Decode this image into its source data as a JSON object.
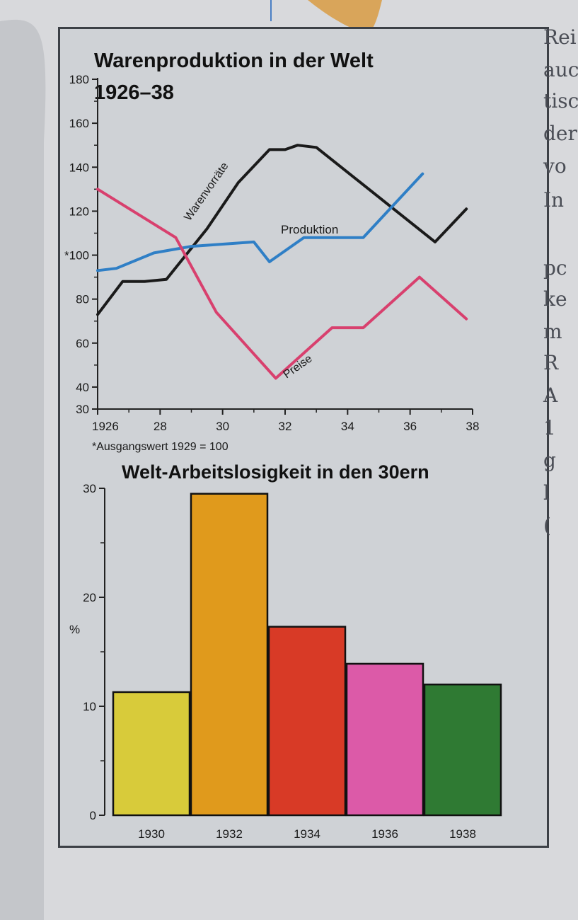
{
  "chart_data": [
    {
      "type": "line",
      "title": "Warenproduktion in der Welt",
      "subtitle": "1926–38",
      "footnote": "*Ausgangswert 1929 = 100",
      "x_tick_labels": [
        "1926",
        "28",
        "30",
        "32",
        "34",
        "36",
        "38"
      ],
      "y_tick_labels": [
        "30",
        "40",
        "60",
        "80",
        "*100",
        "120",
        "140",
        "160",
        "180"
      ],
      "ylim": [
        30,
        180
      ],
      "xlim": [
        1926,
        1938
      ],
      "series": [
        {
          "name": "Warenvorräte",
          "color": "#1a1a1a",
          "x": [
            1926,
            1926.8,
            1927.5,
            1928.2,
            1929.5,
            1930.5,
            1931.5,
            1932,
            1932.4,
            1933,
            1936.8,
            1937.8
          ],
          "values": [
            73,
            88,
            88,
            89,
            112,
            133,
            148,
            148,
            150,
            149,
            106,
            121
          ]
        },
        {
          "name": "Produktion",
          "color": "#2f7fc6",
          "x": [
            1926,
            1926.6,
            1927.8,
            1929,
            1931,
            1931.5,
            1932.6,
            1934.5,
            1936.4
          ],
          "values": [
            93,
            94,
            101,
            104,
            106,
            97,
            108,
            108,
            137
          ]
        },
        {
          "name": "Preise",
          "color": "#d8406e",
          "x": [
            1926,
            1928.5,
            1929.8,
            1931.7,
            1933.5,
            1934.5,
            1936.3,
            1937.8
          ],
          "values": [
            130,
            108,
            74,
            44,
            67,
            67,
            90,
            71
          ]
        }
      ]
    },
    {
      "type": "bar",
      "title": "Welt-Arbeitslosigkeit in den 30ern",
      "ylabel": "%",
      "y_tick_labels": [
        "0",
        "10",
        "20",
        "30"
      ],
      "ylim": [
        0,
        30
      ],
      "categories": [
        "1930",
        "1932",
        "1934",
        "1936",
        "1938"
      ],
      "values": [
        11.3,
        29.5,
        17.3,
        13.9,
        12
      ]
    }
  ],
  "page_text": {
    "right_margin": [
      "Rei",
      "auc",
      "tisc",
      "der",
      "vo",
      "In",
      "pc",
      "ke",
      "m",
      "R",
      "A",
      "1",
      "g",
      "l",
      "("
    ]
  },
  "colors": {
    "bars": [
      "#d8cb3a",
      "#e09a1c",
      "#d83a26",
      "#dc5aa8",
      "#2f7a33"
    ],
    "frame": "#3c4046"
  }
}
